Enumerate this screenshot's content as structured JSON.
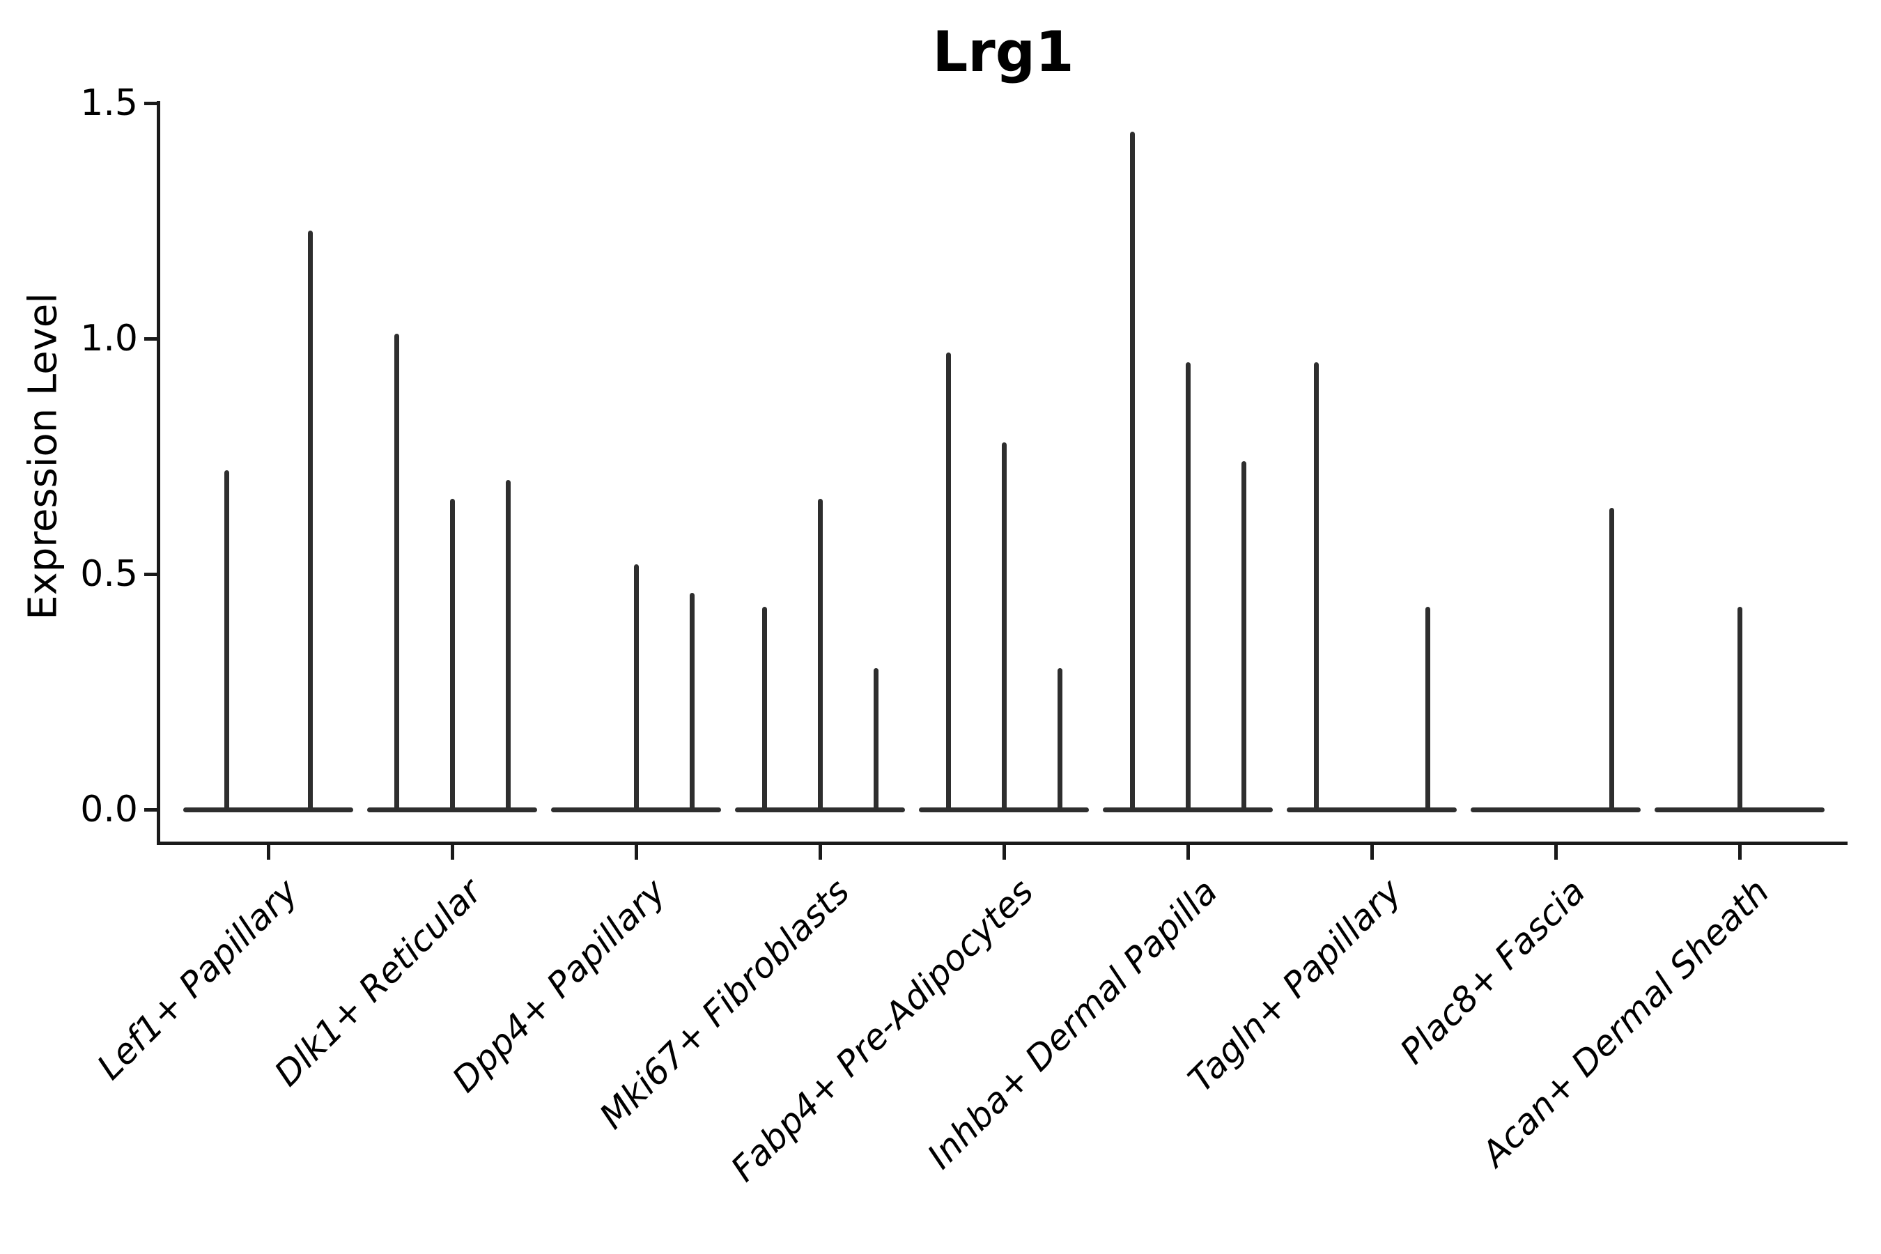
{
  "chart_data": {
    "type": "violin",
    "title": "Lrg1",
    "xlabel": "",
    "ylabel": "Expression Level",
    "ylim": [
      -0.07,
      1.51
    ],
    "yticks": [
      0.0,
      0.5,
      1.0,
      1.5
    ],
    "ytick_labels": [
      "0.0",
      "0.5",
      "1.0",
      "1.5"
    ],
    "grid": false,
    "legend": null,
    "x_tick_label_rotation": 45,
    "x_tick_label_style": "italic",
    "categories": [
      "Lef1+ Papillary",
      "Dlk1+ Reticular",
      "Dpp4+ Papillary",
      "Mki67+ Fibroblasts",
      "Fabp4+ Pre-Adipocytes",
      "Inhba+ Dermal Papilla",
      "Tagln+ Papillary",
      "Plac8+ Fascia",
      "Acan+ Dermal Sheath"
    ],
    "description": "Violin plot of Lrg1 expression; each category shows a flat zero-expression baseline with needle-thin violins whose tips mark peak expression level. Offsets are dodge positions (px) of sub-violins within each category.",
    "violins": [
      {
        "category": "Lef1+ Papillary",
        "spikes": [
          {
            "offset": -60,
            "peak": 0.72
          },
          {
            "offset": 60,
            "peak": 1.23
          }
        ]
      },
      {
        "category": "Dlk1+ Reticular",
        "spikes": [
          {
            "offset": -80,
            "peak": 1.01
          },
          {
            "offset": 0,
            "peak": 0.66
          },
          {
            "offset": 80,
            "peak": 0.7
          }
        ]
      },
      {
        "category": "Dpp4+ Papillary",
        "spikes": [
          {
            "offset": 0,
            "peak": 0.52
          },
          {
            "offset": 80,
            "peak": 0.46
          }
        ]
      },
      {
        "category": "Mki67+ Fibroblasts",
        "spikes": [
          {
            "offset": -80,
            "peak": 0.43
          },
          {
            "offset": 0,
            "peak": 0.66
          },
          {
            "offset": 80,
            "peak": 0.3
          }
        ]
      },
      {
        "category": "Fabp4+ Pre-Adipocytes",
        "spikes": [
          {
            "offset": -80,
            "peak": 0.97
          },
          {
            "offset": 0,
            "peak": 0.78
          },
          {
            "offset": 80,
            "peak": 0.3
          }
        ]
      },
      {
        "category": "Inhba+ Dermal Papilla",
        "spikes": [
          {
            "offset": -80,
            "peak": 1.44
          },
          {
            "offset": 0,
            "peak": 0.95
          },
          {
            "offset": 80,
            "peak": 0.74
          }
        ]
      },
      {
        "category": "Tagln+ Papillary",
        "spikes": [
          {
            "offset": -80,
            "peak": 0.95
          },
          {
            "offset": 80,
            "peak": 0.43
          }
        ]
      },
      {
        "category": "Plac8+ Fascia",
        "spikes": [
          {
            "offset": 80,
            "peak": 0.64
          }
        ]
      },
      {
        "category": "Acan+ Dermal Sheath",
        "spikes": [
          {
            "offset": 0,
            "peak": 0.43
          }
        ]
      }
    ],
    "colors": {
      "violin": "#2e2e2e",
      "axis": "#1a1a1a",
      "text": "#000000",
      "background": "#ffffff"
    }
  }
}
